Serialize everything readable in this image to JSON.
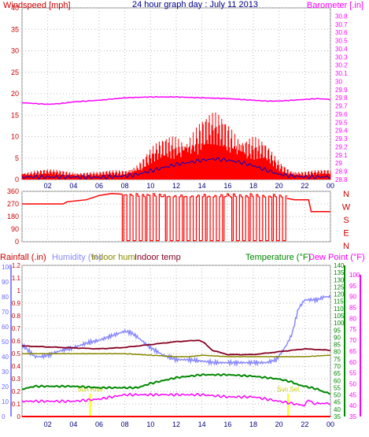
{
  "title": "24 hour graph day : July 11 2013",
  "colors": {
    "wind": "#ff0000",
    "gust_avg": "#0000cc",
    "baro": "#ff00ff",
    "dir": "#ff0000",
    "rain": "#ff0000",
    "humidity": "#8888ff",
    "indoor_hum": "#888800",
    "indoor_temp": "#880022",
    "temperature": "#008800",
    "dewpoint": "#ff00ff",
    "sun": "#ffff00"
  },
  "chart_data": [
    {
      "type": "line",
      "name": "wind-barometer",
      "ylabel": "Windspeed [mph]",
      "y2label": "Barometer [.in]",
      "ylim": [
        0,
        40
      ],
      "y2lim": [
        28.8,
        30.9
      ],
      "x_ticks": [
        "02",
        "04",
        "06",
        "08",
        "10",
        "12",
        "14",
        "16",
        "18",
        "20",
        "22",
        "00"
      ],
      "y_ticks": [
        "0",
        "5",
        "10",
        "15",
        "20",
        "25",
        "30",
        "35",
        "40"
      ],
      "y2_ticks": [
        "28.8",
        "28.9",
        "29",
        "29.1",
        "29.2",
        "29.3",
        "29.4",
        "29.5",
        "29.6",
        "29.7",
        "29.8",
        "29.9",
        "30",
        "30.1",
        "30.2",
        "30.3",
        "30.4",
        "30.5",
        "30.6",
        "30.7",
        "30.8"
      ],
      "series": [
        {
          "x": [
            0,
            2,
            4,
            6,
            8,
            9,
            10,
            11,
            12,
            13,
            14,
            15,
            16,
            17,
            18,
            19,
            20,
            21,
            22,
            23,
            24
          ],
          "values": [
            1.5,
            1.6,
            1.5,
            1.2,
            1.8,
            3.0,
            5.0,
            6.5,
            8.0,
            9.0,
            10.0,
            10.5,
            10.0,
            9.0,
            7.5,
            5.5,
            3.0,
            1.8,
            1.5,
            1.5,
            1.6
          ]
        },
        {
          "x": [
            0,
            2,
            4,
            6,
            8,
            9,
            10,
            11,
            12,
            13,
            14,
            15,
            16,
            17,
            18,
            19,
            20,
            21,
            22,
            23,
            24
          ],
          "values": [
            0.6,
            0.6,
            0.6,
            0.5,
            0.8,
            1.2,
            2.0,
            2.8,
            3.5,
            4.0,
            4.5,
            4.8,
            4.5,
            4.0,
            3.2,
            2.2,
            1.2,
            0.8,
            0.6,
            0.6,
            0.6
          ]
        },
        {
          "x": [
            0,
            1,
            2,
            3,
            4,
            6,
            8,
            10,
            12,
            14,
            16,
            18,
            19,
            20,
            22,
            23,
            24
          ],
          "values": [
            29.74,
            29.73,
            29.72,
            29.73,
            29.75,
            29.77,
            29.8,
            29.81,
            29.81,
            29.8,
            29.79,
            29.77,
            29.76,
            29.76,
            29.78,
            29.79,
            29.78
          ]
        }
      ]
    },
    {
      "type": "line",
      "name": "wind-direction",
      "ylim": [
        0,
        360
      ],
      "y_ticks": [
        "0",
        "90",
        "180",
        "270",
        "360"
      ],
      "dir_labels": [
        "N",
        "W",
        "S",
        "E",
        "N"
      ],
      "series": [
        {
          "x": [
            0,
            3.2,
            3.5,
            5,
            6,
            7,
            7.8
          ],
          "values": [
            270,
            270,
            285,
            300,
            330,
            345,
            340
          ]
        },
        {
          "x": [
            20.6,
            21.2,
            22.3,
            22.5,
            24
          ],
          "values": [
            310,
            300,
            300,
            215,
            215
          ]
        }
      ]
    },
    {
      "type": "line",
      "name": "rain-humidity-temperature",
      "ylabel": "Rainfall (.in)",
      "y2label": "Temperature (°F)",
      "y3label": "Dew Point (°F)",
      "legend": [
        "Humidity (%)",
        "Indoor hum",
        "Indoor temp"
      ],
      "ylim": [
        0,
        1.2
      ],
      "hum_ticks": [
        "0",
        "10",
        "20",
        "30",
        "40",
        "50",
        "60",
        "70",
        "80",
        "90",
        "100"
      ],
      "rain_ticks": [
        "0",
        "0.1",
        "0.2",
        "0.3",
        "0.4",
        "0.5",
        "0.6",
        "0.7",
        "0.8",
        "0.9",
        "1",
        "1.1",
        "1.2"
      ],
      "temp_ticks": [
        "35",
        "40",
        "45",
        "50",
        "55",
        "60",
        "65",
        "70",
        "75",
        "80",
        "85",
        "90",
        "95",
        "100",
        "105",
        "110",
        "115",
        "120",
        "125",
        "130",
        "135",
        "140"
      ],
      "dew_ticks": [
        "35",
        "40",
        "45",
        "50",
        "55",
        "60",
        "65",
        "70",
        "75",
        "80",
        "85",
        "90",
        "95",
        "100"
      ],
      "sun_labels": [
        "Sun Rise",
        "Sun Set"
      ],
      "sun_x": [
        5.3,
        20.7
      ],
      "series": [
        {
          "x": [
            0,
            0.5,
            1.0,
            1.5,
            2.0,
            3.0,
            4.0,
            5.0,
            6.0,
            7.0,
            8.0,
            8.5,
            9.0,
            10.0,
            11.0,
            12.0,
            13.0,
            14.0,
            15.0,
            16.0,
            17.0,
            18.0,
            19.0,
            19.8,
            20.2,
            20.6,
            21.0,
            21.5,
            22.0,
            22.5,
            23.0,
            23.5,
            24.0
          ],
          "values": [
            48,
            44,
            40,
            40,
            41,
            44,
            46,
            49,
            51,
            54,
            57,
            56,
            53,
            46,
            41,
            38,
            38,
            37,
            36,
            36,
            36,
            36,
            36,
            38,
            43,
            48,
            55,
            72,
            78,
            78,
            78,
            80,
            80
          ]
        },
        {
          "x": [
            0,
            2,
            4,
            6,
            8,
            10,
            12,
            13,
            14,
            16,
            18,
            20,
            22,
            24
          ],
          "values": [
            42,
            42,
            42,
            42,
            42,
            41,
            40,
            40,
            41,
            40,
            40,
            40,
            40,
            41
          ]
        },
        {
          "x": [
            0,
            3,
            6,
            8,
            10,
            12,
            13.8,
            14.2,
            14.8,
            16,
            18,
            20,
            22,
            24
          ],
          "values": [
            84,
            83,
            82,
            83,
            85,
            87,
            88,
            86,
            81,
            78,
            78,
            80,
            82,
            81
          ]
        },
        {
          "x": [
            0,
            1,
            2,
            4,
            6,
            8,
            9,
            10,
            11,
            12,
            13,
            14,
            16,
            18,
            19,
            20,
            20.5,
            21,
            21.5,
            22,
            22.5,
            23,
            23.5,
            24
          ],
          "values": [
            54,
            56,
            56,
            56,
            55,
            55,
            55,
            58,
            60,
            62,
            63,
            64,
            64,
            63,
            62,
            61,
            60,
            59,
            57,
            56,
            55,
            54,
            52,
            51
          ]
        },
        {
          "x": [
            0,
            2,
            4,
            6,
            8,
            10,
            12,
            14,
            16,
            18,
            20,
            21,
            22,
            22.3,
            22.6,
            23,
            24
          ],
          "values": [
            42,
            42,
            42,
            43,
            45,
            45,
            45,
            45,
            44,
            44,
            42,
            41,
            40,
            43,
            41,
            41,
            41
          ]
        },
        {
          "x": [
            0,
            24
          ],
          "values": [
            0,
            0
          ]
        }
      ]
    }
  ]
}
